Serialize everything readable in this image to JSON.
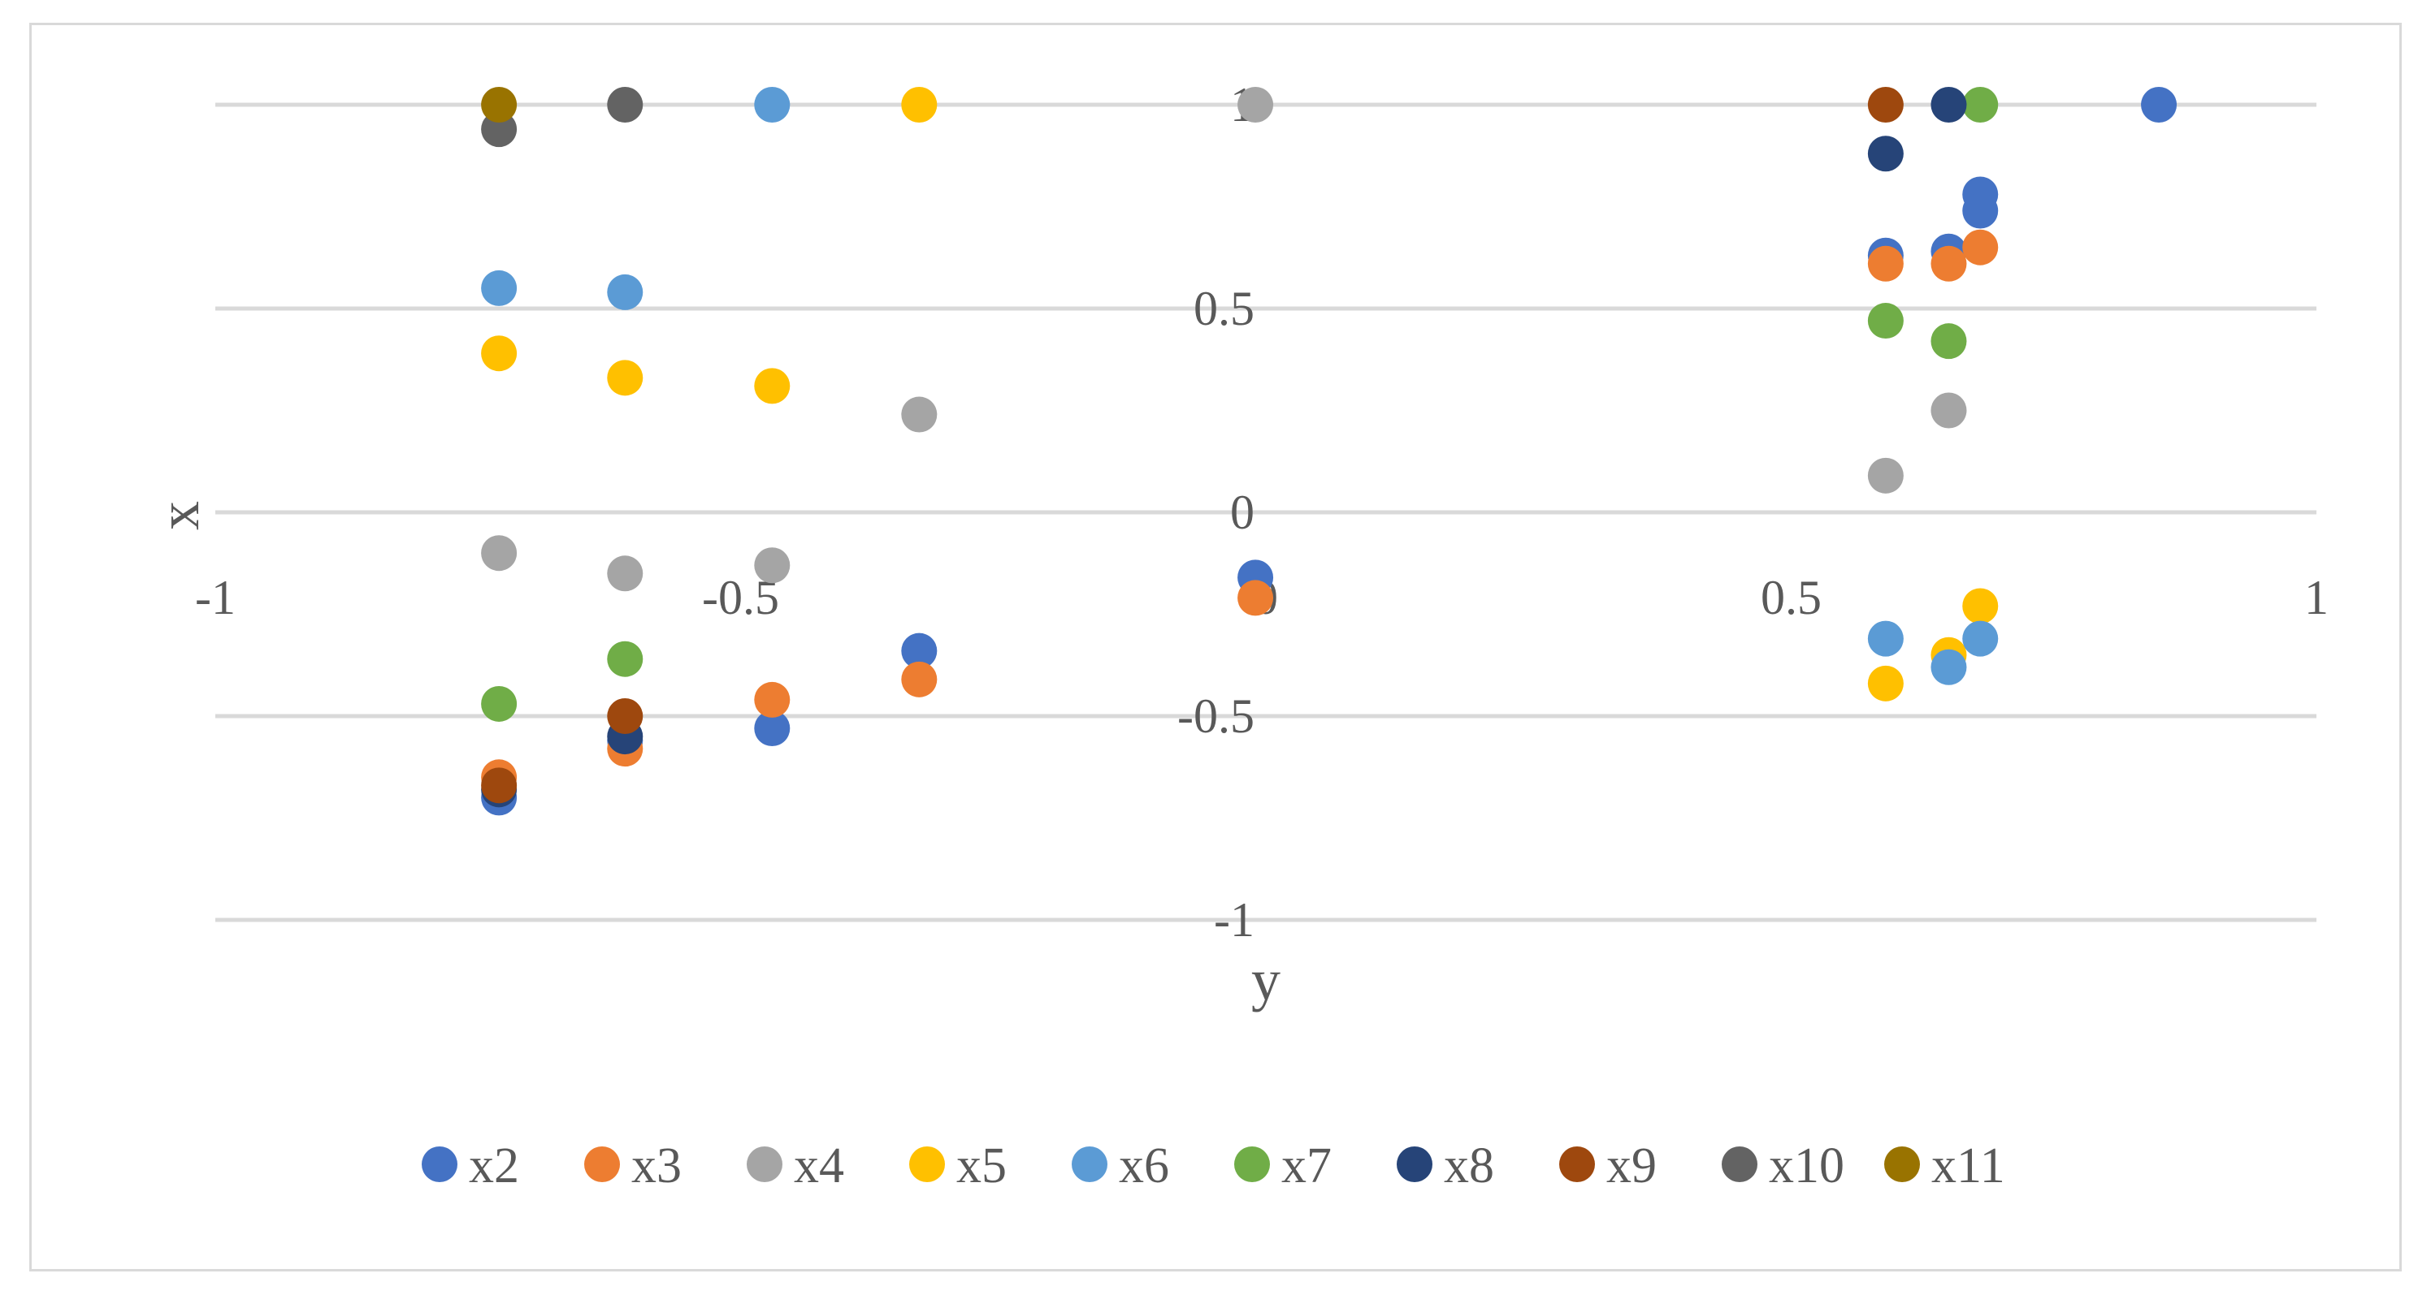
{
  "chart_data": {
    "type": "scatter",
    "title": "",
    "xlabel": "y",
    "ylabel": "x",
    "xlim": [
      -1,
      1
    ],
    "ylim": [
      -1,
      1
    ],
    "x_ticks": [
      -1,
      -0.5,
      0,
      0.5,
      1
    ],
    "y_ticks": [
      -1,
      -0.5,
      0,
      0.5,
      1
    ],
    "x_tick_labels": [
      "-1",
      "-0.5",
      "0",
      "0.5",
      "1"
    ],
    "y_tick_labels": [
      "-1",
      "-0.5",
      "0",
      "0.5",
      "1"
    ],
    "grid": "horizontal",
    "legend_position": "bottom",
    "series": [
      {
        "name": "x2",
        "color": "#4472C4",
        "points": [
          [
            -0.73,
            -0.7
          ],
          [
            -0.61,
            -0.56
          ],
          [
            -0.47,
            -0.53
          ],
          [
            -0.33,
            -0.34
          ],
          [
            -0.01,
            -0.16
          ],
          [
            0.59,
            0.63
          ],
          [
            0.65,
            0.64
          ],
          [
            0.68,
            0.78
          ],
          [
            0.68,
            0.74
          ],
          [
            0.85,
            1.0
          ]
        ]
      },
      {
        "name": "x3",
        "color": "#ED7D31",
        "points": [
          [
            -0.73,
            -0.65
          ],
          [
            -0.61,
            -0.58
          ],
          [
            -0.47,
            -0.46
          ],
          [
            -0.33,
            -0.41
          ],
          [
            -0.01,
            -0.21
          ],
          [
            0.59,
            0.61
          ],
          [
            0.65,
            0.61
          ],
          [
            0.68,
            0.65
          ]
        ]
      },
      {
        "name": "x4",
        "color": "#A5A5A5",
        "points": [
          [
            -0.73,
            -0.1
          ],
          [
            -0.61,
            -0.15
          ],
          [
            -0.47,
            -0.13
          ],
          [
            -0.33,
            0.24
          ],
          [
            -0.01,
            1.0
          ],
          [
            0.59,
            0.09
          ],
          [
            0.65,
            0.25
          ]
        ]
      },
      {
        "name": "x5",
        "color": "#FFC000",
        "points": [
          [
            -0.73,
            0.39
          ],
          [
            -0.61,
            0.33
          ],
          [
            -0.47,
            0.31
          ],
          [
            -0.33,
            1.0
          ],
          [
            0.59,
            -0.42
          ],
          [
            0.65,
            -0.35
          ],
          [
            0.68,
            -0.23
          ]
        ]
      },
      {
        "name": "x6",
        "color": "#5B9BD5",
        "points": [
          [
            -0.73,
            0.55
          ],
          [
            -0.61,
            0.54
          ],
          [
            -0.47,
            1.0
          ],
          [
            0.59,
            -0.31
          ],
          [
            0.65,
            -0.38
          ],
          [
            0.68,
            -0.31
          ]
        ]
      },
      {
        "name": "x7",
        "color": "#70AD47",
        "points": [
          [
            -0.73,
            -0.47
          ],
          [
            -0.61,
            -0.36
          ],
          [
            0.59,
            0.47
          ],
          [
            0.65,
            0.42
          ],
          [
            0.68,
            1.0
          ]
        ]
      },
      {
        "name": "x8",
        "color": "#264478",
        "points": [
          [
            -0.73,
            -0.68
          ],
          [
            -0.61,
            -0.55
          ],
          [
            0.59,
            0.88
          ],
          [
            0.65,
            1.0
          ]
        ]
      },
      {
        "name": "x9",
        "color": "#9E480E",
        "points": [
          [
            -0.73,
            -0.67
          ],
          [
            -0.61,
            -0.5
          ],
          [
            0.59,
            1.0
          ]
        ]
      },
      {
        "name": "x10",
        "color": "#636363",
        "points": [
          [
            -0.73,
            0.94
          ],
          [
            -0.61,
            1.0
          ]
        ]
      },
      {
        "name": "x11",
        "color": "#997300",
        "points": [
          [
            -0.73,
            1.0
          ]
        ]
      }
    ]
  }
}
